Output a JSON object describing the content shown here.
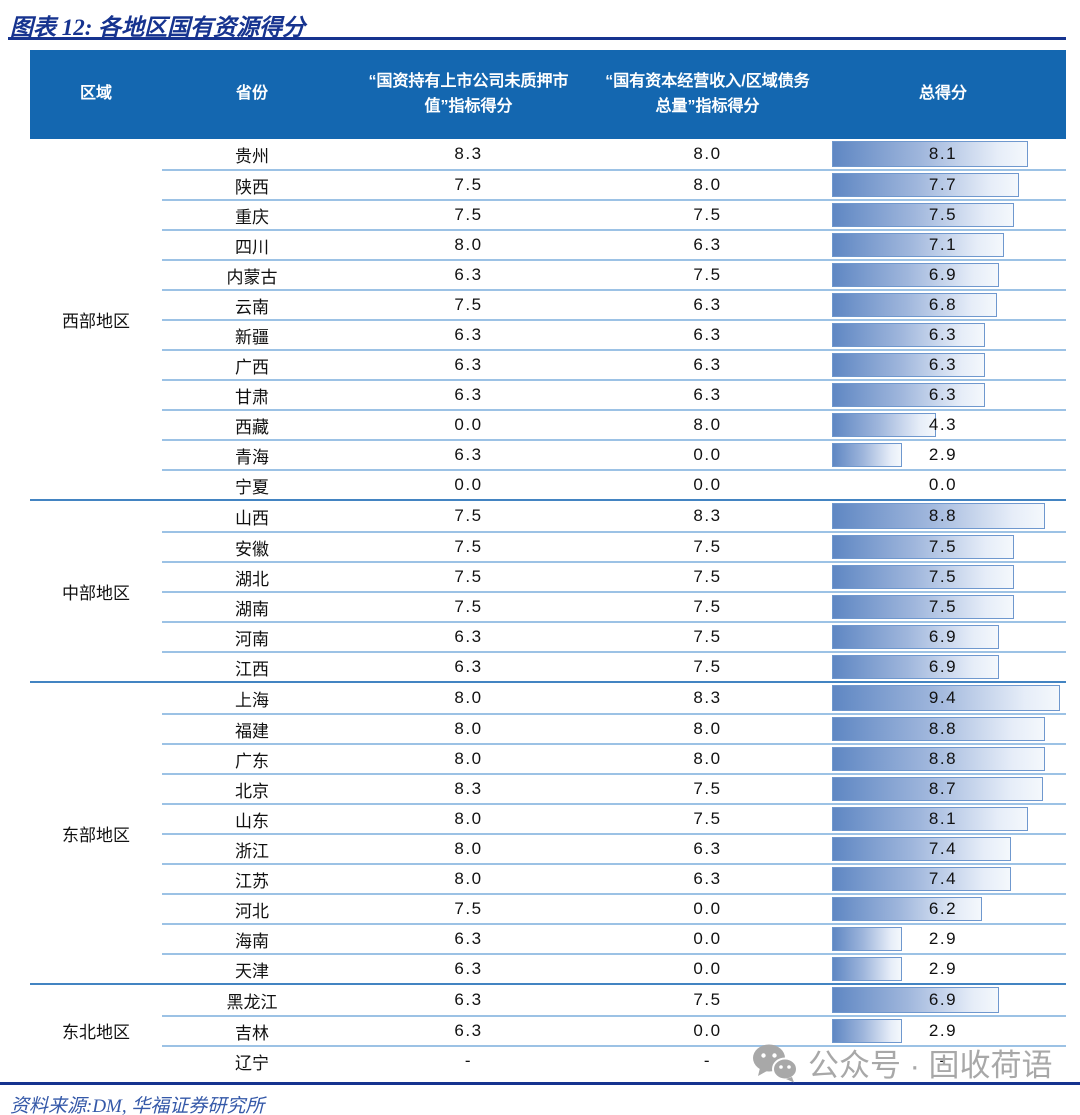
{
  "title": "图表 12: 各地区国有资源得分",
  "source_note": "资料来源:DM, 华福证券研究所",
  "watermark": {
    "icon": "wechat-icon",
    "text": "公众号 · 固收荷语"
  },
  "colors": {
    "navy_rule": "#16338F",
    "header_bg": "#1467B0",
    "header_text": "#FFFFFF",
    "row_divider": "#9CC2E5",
    "group_divider": "#4384C2",
    "bar_gradient_start": "#5F87C3",
    "bar_gradient_end": "#F4F8FC",
    "bar_border": "#6F98CE",
    "source_text": "#3458A8",
    "watermark_gray": "#A8A8A8"
  },
  "chart_data": {
    "type": "table",
    "title": "图表 12: 各地区国有资源得分",
    "columns": [
      "区域",
      "省份",
      "“国资持有上市公司未质押市值”指标得分",
      "“国有资本经营收入/区域债务总量”指标得分",
      "总得分"
    ],
    "bar_column": "总得分",
    "bar_min": 0,
    "bar_max": 9.4,
    "groups": [
      {
        "region": "西部地区",
        "rows": [
          [
            "贵州",
            "8.3",
            "8.0",
            "8.1"
          ],
          [
            "陕西",
            "7.5",
            "8.0",
            "7.7"
          ],
          [
            "重庆",
            "7.5",
            "7.5",
            "7.5"
          ],
          [
            "四川",
            "8.0",
            "6.3",
            "7.1"
          ],
          [
            "内蒙古",
            "6.3",
            "7.5",
            "6.9"
          ],
          [
            "云南",
            "7.5",
            "6.3",
            "6.8"
          ],
          [
            "新疆",
            "6.3",
            "6.3",
            "6.3"
          ],
          [
            "广西",
            "6.3",
            "6.3",
            "6.3"
          ],
          [
            "甘肃",
            "6.3",
            "6.3",
            "6.3"
          ],
          [
            "西藏",
            "0.0",
            "8.0",
            "4.3"
          ],
          [
            "青海",
            "6.3",
            "0.0",
            "2.9"
          ],
          [
            "宁夏",
            "0.0",
            "0.0",
            "0.0"
          ]
        ]
      },
      {
        "region": "中部地区",
        "rows": [
          [
            "山西",
            "7.5",
            "8.3",
            "8.8"
          ],
          [
            "安徽",
            "7.5",
            "7.5",
            "7.5"
          ],
          [
            "湖北",
            "7.5",
            "7.5",
            "7.5"
          ],
          [
            "湖南",
            "7.5",
            "7.5",
            "7.5"
          ],
          [
            "河南",
            "6.3",
            "7.5",
            "6.9"
          ],
          [
            "江西",
            "6.3",
            "7.5",
            "6.9"
          ]
        ]
      },
      {
        "region": "东部地区",
        "rows": [
          [
            "上海",
            "8.0",
            "8.3",
            "9.4"
          ],
          [
            "福建",
            "8.0",
            "8.0",
            "8.8"
          ],
          [
            "广东",
            "8.0",
            "8.0",
            "8.8"
          ],
          [
            "北京",
            "8.3",
            "7.5",
            "8.7"
          ],
          [
            "山东",
            "8.0",
            "7.5",
            "8.1"
          ],
          [
            "浙江",
            "8.0",
            "6.3",
            "7.4"
          ],
          [
            "江苏",
            "8.0",
            "6.3",
            "7.4"
          ],
          [
            "河北",
            "7.5",
            "0.0",
            "6.2"
          ],
          [
            "海南",
            "6.3",
            "0.0",
            "2.9"
          ],
          [
            "天津",
            "6.3",
            "0.0",
            "2.9"
          ]
        ]
      },
      {
        "region": "东北地区",
        "rows": [
          [
            "黑龙江",
            "6.3",
            "7.5",
            "6.9"
          ],
          [
            "吉林",
            "6.3",
            "0.0",
            "2.9"
          ],
          [
            "辽宁",
            "-",
            "-",
            "-"
          ]
        ]
      }
    ]
  }
}
